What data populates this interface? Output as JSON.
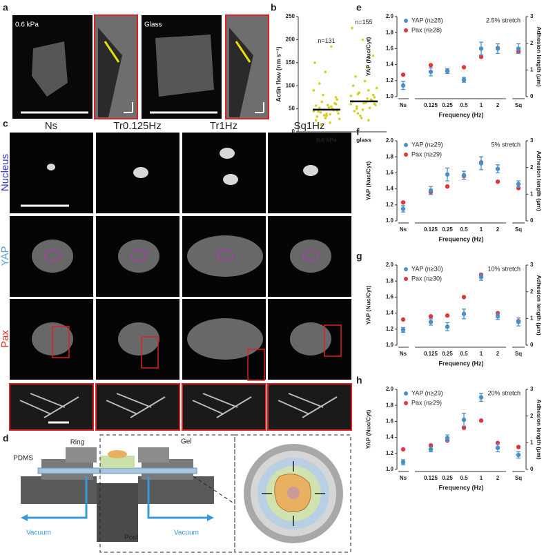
{
  "figure": {
    "a": {
      "label": "a",
      "images": [
        "0.6 kPa",
        "Glass"
      ]
    },
    "c": {
      "label": "c",
      "columns": [
        "Ns",
        "Tr0.125Hz",
        "Tr1Hz",
        "Sq1Hz"
      ],
      "rows": [
        "Nucleus",
        "YAP",
        "Pax"
      ]
    },
    "d": {
      "label": "d",
      "parts": [
        "PDMS",
        "Ring",
        "Gel",
        "Vacuum",
        "Vacuum",
        "Post"
      ]
    }
  },
  "chart_data": [
    {
      "type": "strip",
      "label": "b",
      "ylabel": "Actin flow (nm s⁻¹)",
      "categories": [
        "0.6 kPa",
        "glass"
      ],
      "annotations": [
        "n=131",
        "n=155"
      ],
      "color": "#d0c600",
      "values": [
        [
          45,
          38,
          52,
          60,
          30,
          48,
          55,
          42,
          70,
          35,
          25,
          50,
          65,
          40,
          58,
          33,
          47,
          80,
          28,
          53,
          44,
          62,
          36,
          90,
          20,
          105,
          75,
          130,
          150,
          185,
          15,
          46,
          39,
          57
        ],
        [
          60,
          72,
          55,
          80,
          48,
          66,
          90,
          40,
          75,
          62,
          100,
          52,
          85,
          58,
          110,
          45,
          70,
          35,
          95,
          64,
          120,
          68,
          30,
          78,
          140,
          50,
          165,
          200,
          225,
          25,
          82,
          61
        ]
      ],
      "means": [
        48,
        66
      ],
      "ylim": [
        0,
        250
      ],
      "yticks": [
        0,
        50,
        100,
        150,
        200,
        250
      ]
    },
    {
      "type": "dot",
      "label": "e",
      "annotation": "2.5% stretch",
      "ylabel": "YAP (Nuc/Cyt)",
      "y2label": "Adhesion length (μm)",
      "xlabel": "Frequency (Hz)",
      "categories": [
        "Ns",
        "0.125",
        "0.25",
        "0.5",
        "1",
        "2",
        "Sq"
      ],
      "ylim": [
        1,
        2
      ],
      "yticks": [
        {
          "value": 1,
          "label": "1.0"
        },
        1.2,
        1.4,
        1.6,
        1.8,
        {
          "value": 2,
          "label": "2.0"
        }
      ],
      "y2lim": [
        0,
        3
      ],
      "y2ticks": [
        0,
        1,
        2,
        3
      ],
      "series": [
        {
          "name": "YAP (n≥28)",
          "color": "#4a8fc8",
          "values": [
            1.14,
            1.31,
            1.32,
            1.21,
            1.6,
            1.6,
            1.6
          ],
          "errors": [
            0.05,
            0.05,
            0.03,
            0.03,
            0.08,
            0.06,
            0.06
          ]
        },
        {
          "name": "Pax (n≥28)",
          "color": "#e0383a",
          "axis": "y2",
          "values": [
            0.82,
            1.18,
            0.96,
            1.1,
            1.49,
            1.82,
            1.69
          ]
        }
      ]
    },
    {
      "type": "dot",
      "label": "f",
      "annotation": "5% stretch",
      "ylabel": "YAP (Nuc/Cyt)",
      "y2label": "Adhesion length (μm)",
      "xlabel": "Frequency (Hz)",
      "categories": [
        "Ns",
        "0.125",
        "0.25",
        "0.5",
        "1",
        "2",
        "Sq"
      ],
      "ylim": [
        1,
        2
      ],
      "yticks": [
        {
          "value": 1,
          "label": "1.0"
        },
        1.2,
        1.4,
        1.6,
        1.8,
        {
          "value": 2,
          "label": "2.0"
        }
      ],
      "y2lim": [
        0,
        3
      ],
      "y2ticks": [
        0,
        1,
        2,
        3
      ],
      "series": [
        {
          "name": "YAP (n≥29)",
          "color": "#4a8fc8",
          "values": [
            1.15,
            1.38,
            1.58,
            1.57,
            1.72,
            1.65,
            1.46
          ],
          "errors": [
            0.04,
            0.05,
            0.08,
            0.05,
            0.08,
            0.05,
            0.04
          ]
        },
        {
          "name": "Pax (n≥29)",
          "color": "#e0383a",
          "axis": "y2",
          "values": [
            0.69,
            1.08,
            1.29,
            1.68,
            2.19,
            1.47,
            1.23
          ]
        }
      ]
    },
    {
      "type": "dot",
      "label": "g",
      "annotation": "10% stretch",
      "ylabel": "YAP (Nuc/Cyt)",
      "y2label": "Adhesion length (μm)",
      "xlabel": "Frequency (Hz)",
      "categories": [
        "Ns",
        "0.125",
        "0.25",
        "0.5",
        "1",
        "2",
        "Sq"
      ],
      "ylim": [
        1,
        2
      ],
      "yticks": [
        {
          "value": 1,
          "label": "1.0"
        },
        1.2,
        1.4,
        1.6,
        1.8,
        {
          "value": 2,
          "label": "2.0"
        }
      ],
      "y2lim": [
        0,
        3
      ],
      "y2ticks": [
        0,
        1,
        2,
        3
      ],
      "series": [
        {
          "name": "YAP (n≥30)",
          "color": "#4a8fc8",
          "values": [
            1.19,
            1.29,
            1.23,
            1.39,
            1.85,
            1.36,
            1.29
          ],
          "errors": [
            0.03,
            0.04,
            0.05,
            0.06,
            0.04,
            0.04,
            0.05
          ]
        },
        {
          "name": "Pax (n≥30)",
          "color": "#e0383a",
          "axis": "y2",
          "values": [
            0.96,
            1.08,
            1.11,
            1.8,
            2.64,
            1.2,
            0.9
          ]
        }
      ]
    },
    {
      "type": "dot",
      "label": "h",
      "annotation": "20% stretch",
      "ylabel": "YAP (Nuc/Cyt)",
      "y2label": "Adhesion length (μm)",
      "xlabel": "Frequency (Hz)",
      "categories": [
        "Ns",
        "0.125",
        "0.25",
        "0.5",
        "1",
        "2",
        "Sq"
      ],
      "ylim": [
        1,
        2
      ],
      "yticks": [
        {
          "value": 1,
          "label": "1.0"
        },
        1.2,
        1.4,
        1.6,
        1.8,
        {
          "value": 2,
          "label": "2.0"
        }
      ],
      "y2lim": [
        0,
        3
      ],
      "y2ticks": [
        0,
        1,
        2,
        3
      ],
      "series": [
        {
          "name": "YAP (n≥29)",
          "color": "#4a8fc8",
          "values": [
            1.09,
            1.25,
            1.39,
            1.62,
            1.9,
            1.27,
            1.18
          ],
          "errors": [
            0.03,
            0.03,
            0.04,
            0.08,
            0.05,
            0.05,
            0.04
          ]
        },
        {
          "name": "Pax (n≥29)",
          "color": "#e0383a",
          "axis": "y2",
          "values": [
            0.75,
            0.9,
            1.08,
            1.56,
            1.83,
            0.99,
            0.84
          ]
        }
      ]
    }
  ]
}
